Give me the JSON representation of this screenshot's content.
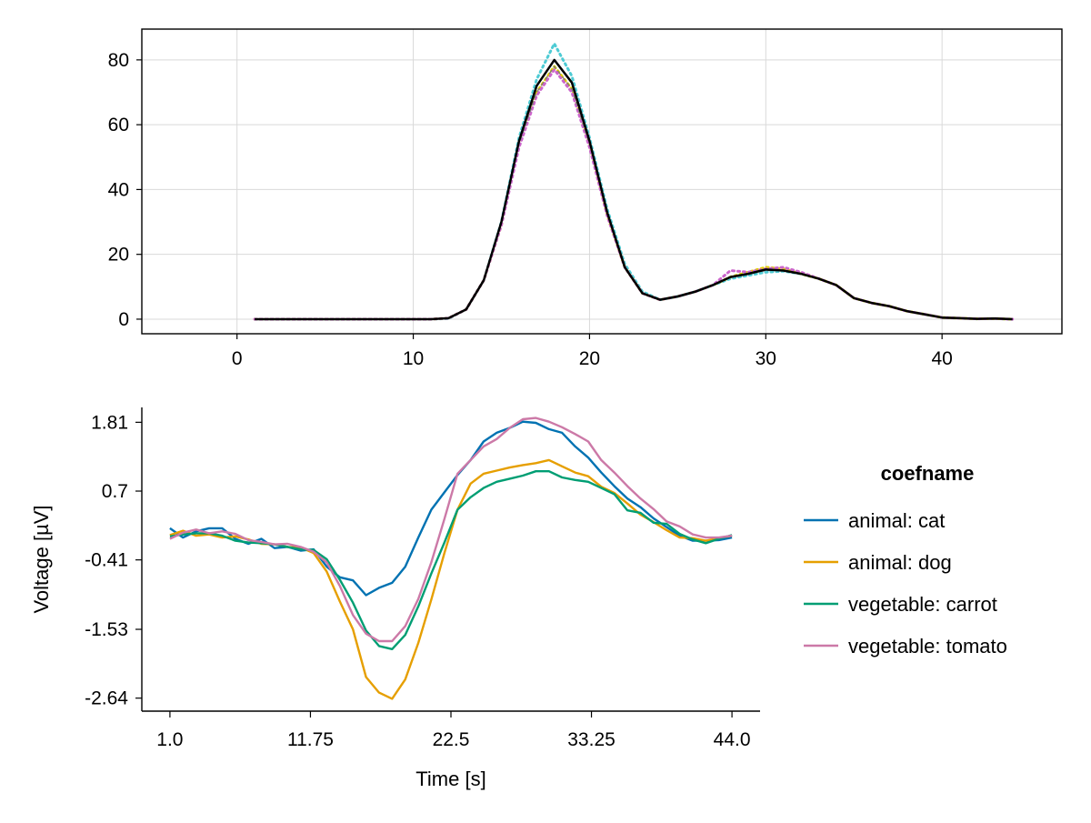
{
  "chart_data": [
    {
      "type": "line",
      "title": "",
      "xlabel": "",
      "ylabel": "",
      "xlim": [
        -5.4,
        46.8
      ],
      "ylim": [
        -4.5,
        89.5
      ],
      "xticks": [
        0,
        10,
        20,
        30,
        40
      ],
      "yticks": [
        0,
        20,
        40,
        60,
        80
      ],
      "grid": true,
      "x": [
        1,
        2,
        3,
        4,
        5,
        6,
        7,
        8,
        9,
        10,
        11,
        12,
        13,
        14,
        15,
        16,
        17,
        18,
        19,
        20,
        21,
        22,
        23,
        24,
        25,
        26,
        27,
        28,
        29,
        30,
        31,
        32,
        33,
        34,
        35,
        36,
        37,
        38,
        39,
        40,
        41,
        42,
        43,
        44
      ],
      "series": [
        {
          "color": "#000000",
          "style": "solid",
          "values": [
            0,
            0,
            0,
            0,
            0,
            0,
            0,
            0,
            0,
            0,
            0,
            0.3,
            3,
            12,
            30,
            55,
            72,
            80,
            73,
            55,
            33,
            16,
            8,
            6,
            7,
            8.5,
            10.5,
            13,
            14,
            15.3,
            15,
            14,
            12.5,
            10.5,
            6.5,
            5,
            4,
            2.5,
            1.5,
            0.5,
            0.3,
            0.1,
            0.2,
            0
          ]
        },
        {
          "color": "#4ecbd4",
          "style": "dotted",
          "values": [
            0,
            0,
            0,
            0,
            0,
            0,
            0,
            0,
            0,
            0,
            0,
            0.2,
            3,
            12,
            30,
            56,
            74,
            85,
            75,
            56,
            34,
            17,
            8.5,
            6,
            7,
            8.5,
            10.5,
            12.5,
            13.5,
            14.5,
            14.8,
            14,
            12.5,
            10.5,
            6.5,
            5,
            4,
            2.5,
            1.5,
            0.5,
            0.3,
            0.1,
            0.2,
            0
          ]
        },
        {
          "color": "#e0d000",
          "style": "dotted",
          "values": [
            0,
            0,
            0,
            0,
            0,
            0,
            0,
            0,
            0,
            0,
            0,
            0.3,
            3,
            12,
            29,
            54,
            70,
            78,
            71,
            54,
            32,
            16,
            8,
            6,
            7,
            8.5,
            10.5,
            13,
            14.5,
            16,
            15.5,
            14,
            12.5,
            10.5,
            6.5,
            5,
            4,
            2.5,
            1.5,
            0.5,
            0.3,
            0.1,
            0.2,
            0
          ]
        },
        {
          "color": "#cc66cc",
          "style": "dotted",
          "values": [
            0,
            0,
            0,
            0,
            0,
            0,
            0,
            0,
            0,
            0,
            0,
            0.3,
            3,
            12,
            29,
            53,
            69,
            77,
            70,
            53,
            32,
            16,
            8,
            6,
            7,
            8.5,
            10.5,
            15,
            14.5,
            15.5,
            16,
            14.5,
            12.5,
            10.5,
            6.5,
            5,
            4,
            2.5,
            1.5,
            0.5,
            0.3,
            0.1,
            0.2,
            0
          ]
        },
        {
          "color": "#7a7a7a",
          "style": "dashed",
          "values": [
            0,
            0,
            0,
            0,
            0,
            0,
            0,
            0,
            0,
            0,
            0,
            0.3,
            3,
            12,
            30,
            54,
            70,
            78,
            71,
            54,
            33,
            16,
            8,
            6,
            7,
            8.5,
            10.5,
            13,
            14,
            15,
            15,
            14,
            12.5,
            10.5,
            6.5,
            5,
            4,
            2.5,
            1.5,
            0.5,
            0.3,
            0.1,
            0.2,
            0
          ]
        }
      ]
    },
    {
      "type": "line",
      "title": "",
      "xlabel": "Time [s]",
      "ylabel": "Voltage [µV]",
      "xlim": [
        -1.15,
        46.15
      ],
      "ylim": [
        -2.85,
        2.05
      ],
      "xticks": [
        1.0,
        11.75,
        22.5,
        33.25,
        44.0
      ],
      "xtick_labels": [
        "1.0",
        "11.75",
        "22.5",
        "33.25",
        "44.0"
      ],
      "yticks": [
        1.81,
        0.7,
        -0.41,
        -1.53,
        -2.64
      ],
      "ytick_labels": [
        "1.81",
        "0.7",
        "-0.41",
        "-1.53",
        "-2.64"
      ],
      "grid": false,
      "legend": {
        "title": "coefname",
        "placement": "right"
      },
      "x": [
        1,
        2,
        3,
        4,
        5,
        6,
        7,
        8,
        9,
        10,
        11,
        12,
        13,
        14,
        15,
        16,
        17,
        18,
        19,
        20,
        21,
        22,
        23,
        24,
        25,
        26,
        27,
        28,
        29,
        30,
        31,
        32,
        33,
        34,
        35,
        36,
        37,
        38,
        39,
        40,
        41,
        42,
        43,
        44
      ],
      "series": [
        {
          "name": "animal: cat",
          "color": "#0072b2",
          "values": [
            0.1,
            -0.05,
            0.05,
            0.1,
            0.1,
            -0.07,
            -0.15,
            -0.07,
            -0.22,
            -0.2,
            -0.26,
            -0.24,
            -0.52,
            -0.69,
            -0.74,
            -0.98,
            -0.86,
            -0.78,
            -0.52,
            -0.05,
            0.4,
            0.68,
            0.96,
            1.2,
            1.5,
            1.64,
            1.72,
            1.82,
            1.8,
            1.7,
            1.64,
            1.42,
            1.24,
            1.0,
            0.78,
            0.58,
            0.44,
            0.26,
            0.12,
            -0.02,
            -0.1,
            -0.1,
            -0.09,
            -0.05
          ]
        },
        {
          "name": "animal: dog",
          "color": "#e69f00",
          "values": [
            -0.01,
            0.06,
            -0.02,
            0.0,
            -0.05,
            -0.03,
            -0.08,
            -0.15,
            -0.16,
            -0.2,
            -0.21,
            -0.3,
            -0.6,
            -1.08,
            -1.53,
            -2.3,
            -2.55,
            -2.65,
            -2.34,
            -1.75,
            -1.05,
            -0.3,
            0.4,
            0.82,
            0.98,
            1.03,
            1.08,
            1.12,
            1.15,
            1.2,
            1.1,
            1.0,
            0.94,
            0.77,
            0.67,
            0.5,
            0.32,
            0.2,
            0.07,
            -0.05,
            -0.06,
            -0.1,
            -0.06,
            -0.02
          ]
        },
        {
          "name": "vegetable: carrot",
          "color": "#009e73",
          "values": [
            -0.03,
            0.0,
            0.02,
            0.02,
            -0.02,
            -0.1,
            -0.13,
            -0.14,
            -0.16,
            -0.2,
            -0.24,
            -0.25,
            -0.4,
            -0.73,
            -1.1,
            -1.55,
            -1.8,
            -1.85,
            -1.62,
            -1.16,
            -0.63,
            -0.13,
            0.4,
            0.6,
            0.75,
            0.85,
            0.9,
            0.95,
            1.02,
            1.02,
            0.92,
            0.88,
            0.85,
            0.75,
            0.65,
            0.39,
            0.35,
            0.19,
            0.17,
            0.01,
            -0.08,
            -0.14,
            -0.07,
            -0.01
          ]
        },
        {
          "name": "vegetable: tomato",
          "color": "#cc79a7",
          "values": [
            -0.07,
            0.03,
            0.08,
            0.02,
            0.05,
            0.01,
            -0.09,
            -0.12,
            -0.16,
            -0.15,
            -0.2,
            -0.28,
            -0.45,
            -0.83,
            -1.3,
            -1.6,
            -1.72,
            -1.72,
            -1.48,
            -1.04,
            -0.45,
            0.25,
            0.98,
            1.2,
            1.42,
            1.54,
            1.72,
            1.86,
            1.88,
            1.82,
            1.73,
            1.62,
            1.5,
            1.2,
            1.0,
            0.78,
            0.58,
            0.41,
            0.21,
            0.13,
            0.0,
            -0.05,
            -0.05,
            -0.02
          ]
        }
      ]
    }
  ]
}
